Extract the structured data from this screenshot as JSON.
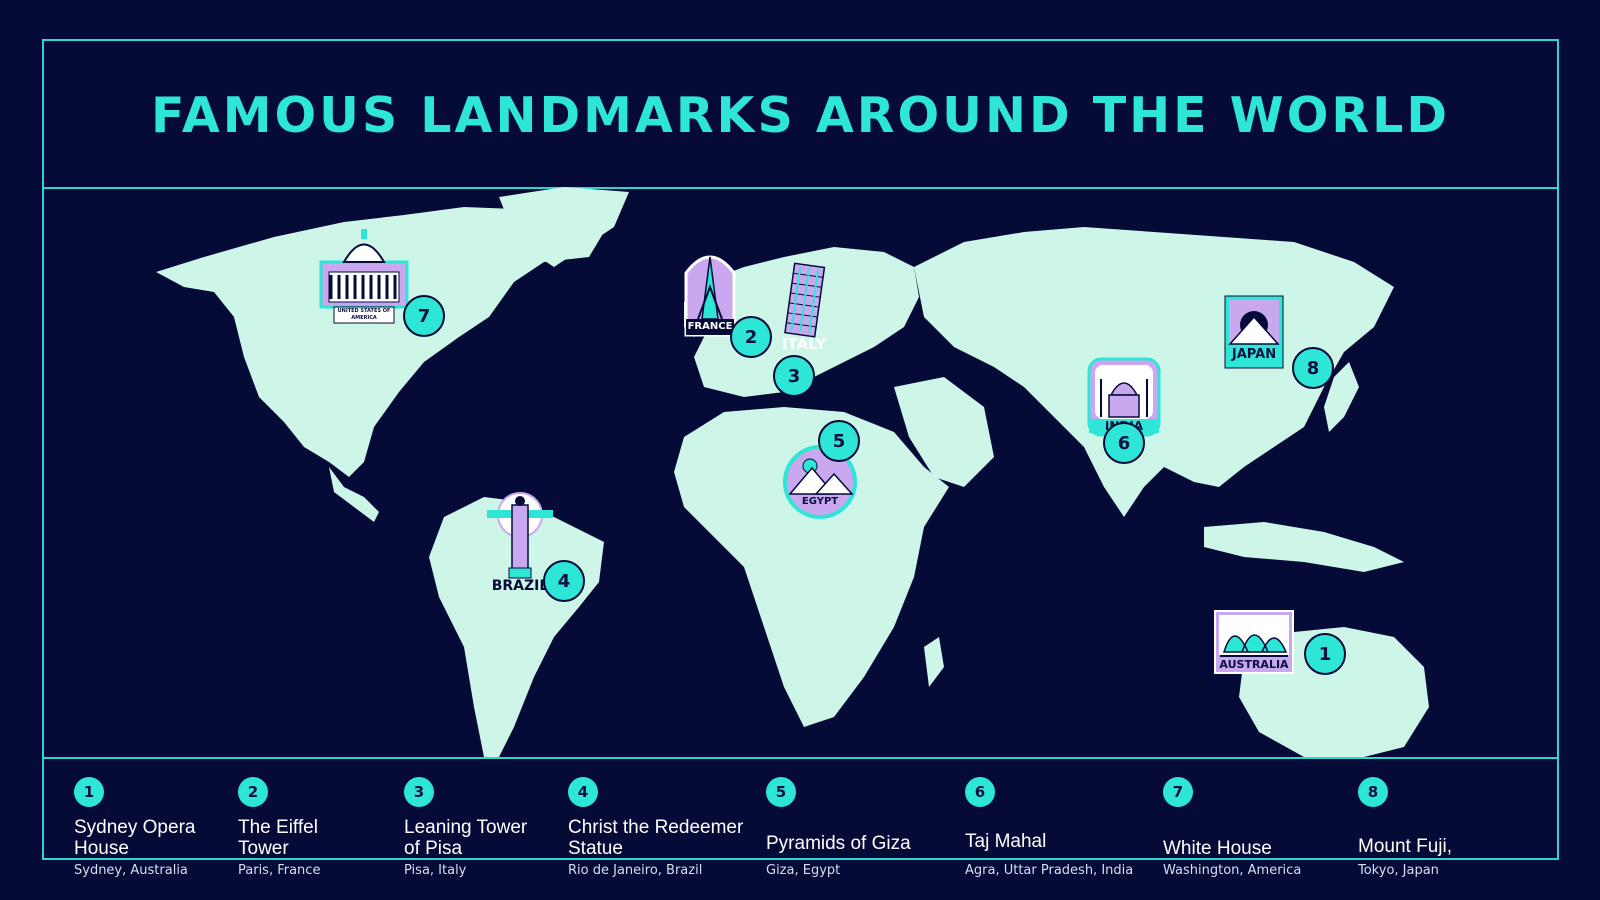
{
  "title": "FAMOUS LANDMARKS AROUND THE WORLD",
  "colors": {
    "background": "#050a37",
    "accent": "#2ee6d6",
    "land": "#cdf6e9",
    "badge_lavender": "#c9a8f0"
  },
  "map": {
    "badges": {
      "usa": "UNITED STATES OF AMERICA",
      "france": "FRANCE",
      "italy": "ITALY",
      "brazil": "BRAZIL",
      "egypt": "EGYPT",
      "india": "INDIA",
      "japan": "JAPAN",
      "australia": "AUSTRALIA"
    },
    "markers": [
      "7",
      "2",
      "3",
      "4",
      "5",
      "6",
      "8",
      "1"
    ]
  },
  "legend": [
    {
      "num": "1",
      "name": "Sydney Opera House",
      "location": "Sydney, Australia"
    },
    {
      "num": "2",
      "name": "The Eiffel Tower",
      "location": "Paris, France"
    },
    {
      "num": "3",
      "name": "Leaning Tower of Pisa",
      "location": "Pisa, Italy"
    },
    {
      "num": "4",
      "name": "Christ the Redeemer Statue",
      "location": "Rio de Janeiro, Brazil"
    },
    {
      "num": "5",
      "name": "Pyramids of Giza",
      "location": "Giza, Egypt"
    },
    {
      "num": "6",
      "name": "Taj Mahal",
      "location": "Agra, Uttar Pradesh, India"
    },
    {
      "num": "7",
      "name": "White House",
      "location": "Washington, America"
    },
    {
      "num": "8",
      "name": "Mount Fuji,",
      "location": "Tokyo, Japan"
    }
  ]
}
